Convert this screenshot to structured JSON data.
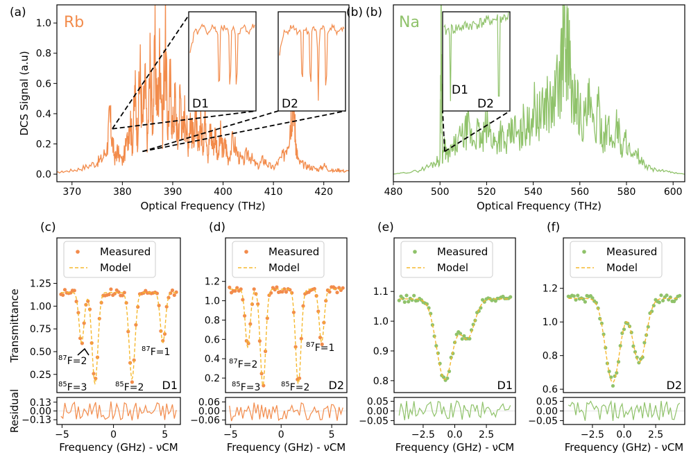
{
  "colors": {
    "rb": "#f28b4b",
    "na": "#8fc26a",
    "model": "#f5b82e",
    "axis": "#000000"
  },
  "chart_data": [
    {
      "id": "a",
      "type": "line",
      "panel_label": "(a)",
      "title": "Rb",
      "xlabel": "Optical Frequency (THz)",
      "ylabel": "DCS Signal (a.u)",
      "xlim": [
        367,
        425
      ],
      "ylim": [
        -0.05,
        1.12
      ],
      "xticks": [
        370,
        380,
        390,
        400,
        410,
        420
      ],
      "yticks": [
        0.0,
        0.2,
        0.4,
        0.6,
        0.8,
        1.0
      ],
      "xtick_labels": [
        "370",
        "380",
        "390",
        "400",
        "410",
        "420"
      ],
      "ytick_labels": [
        "0.0",
        "0.2",
        "0.4",
        "0.6",
        "0.8",
        "1.0"
      ],
      "series": [
        {
          "name": "Rb spectrum",
          "color": "#f28b4b",
          "x": [
            367,
            369,
            371,
            373,
            375,
            376,
            377,
            377.5,
            378,
            378.5,
            379,
            380,
            381,
            381.5,
            382,
            382.5,
            383,
            383.5,
            384,
            384.5,
            385,
            385.5,
            386,
            386.5,
            387,
            387.5,
            388,
            388.5,
            389,
            389.5,
            390,
            390.5,
            391,
            391.5,
            392,
            392.5,
            393,
            393.5,
            394,
            394.5,
            395,
            395.5,
            396,
            396.5,
            397,
            397.5,
            398,
            398.5,
            399,
            399.5,
            400,
            400.5,
            401,
            402,
            403,
            404,
            405,
            406,
            407,
            408,
            409,
            410,
            411,
            412,
            413,
            413.5,
            414,
            414.3,
            414.6,
            415,
            416,
            417,
            418,
            419,
            420,
            421,
            422,
            423,
            424,
            425
          ],
          "y": [
            0.01,
            0.02,
            0.03,
            0.05,
            0.08,
            0.1,
            0.18,
            0.38,
            0.22,
            0.1,
            0.15,
            0.08,
            0.22,
            0.4,
            0.18,
            0.55,
            0.25,
            0.7,
            0.3,
            0.6,
            0.2,
            0.72,
            0.35,
            0.78,
            0.4,
            0.85,
            0.3,
            0.95,
            0.28,
            0.6,
            0.3,
            0.5,
            0.2,
            0.55,
            0.25,
            0.45,
            0.18,
            0.4,
            0.22,
            0.42,
            0.15,
            0.35,
            0.2,
            0.45,
            0.12,
            0.3,
            0.18,
            0.28,
            0.1,
            0.25,
            0.15,
            0.2,
            0.1,
            0.22,
            0.12,
            0.08,
            0.15,
            0.08,
            0.05,
            0.1,
            0.06,
            0.04,
            0.08,
            0.12,
            0.25,
            0.4,
            0.55,
            0.3,
            0.15,
            0.08,
            0.06,
            0.05,
            0.04,
            0.03,
            0.06,
            0.03,
            0.02,
            0.03,
            0.02,
            0.02
          ]
        }
      ],
      "insets": [
        {
          "label": "D1",
          "zoom_x": 378,
          "zoom_y": 0.3,
          "dips": [
            0.45,
            0.62,
            0.72
          ]
        },
        {
          "label": "D2",
          "zoom_x": 384,
          "zoom_y": 0.15,
          "dips": [
            0.35,
            0.48,
            0.6,
            0.72
          ]
        }
      ]
    },
    {
      "id": "b",
      "type": "line",
      "panel_label": "(b)",
      "title": "Na",
      "xlabel": "Optical Frequency (THz)",
      "ylabel": "",
      "xlim": [
        480,
        605
      ],
      "ylim": [
        -0.05,
        1.12
      ],
      "xticks": [
        480,
        500,
        520,
        540,
        560,
        580,
        600
      ],
      "yticks": [],
      "xtick_labels": [
        "480",
        "500",
        "520",
        "540",
        "560",
        "580",
        "600"
      ],
      "ytick_labels": [],
      "series": [
        {
          "name": "Na spectrum",
          "color": "#8fc26a",
          "x": [
            480,
            485,
            490,
            495,
            498,
            500,
            500.5,
            501,
            502,
            503,
            505,
            507,
            510,
            512,
            514,
            516,
            518,
            520,
            522,
            524,
            526,
            528,
            530,
            532,
            534,
            536,
            538,
            540,
            542,
            544,
            546,
            548,
            550,
            552,
            553,
            554,
            555,
            556,
            557,
            558,
            560,
            562,
            564,
            566,
            568,
            570,
            572,
            574,
            576,
            578,
            580,
            582,
            585,
            588,
            592,
            596,
            600,
            605
          ],
          "y": [
            0.0,
            0.01,
            0.02,
            0.05,
            0.08,
            0.1,
            1.1,
            0.12,
            0.18,
            0.12,
            0.15,
            0.2,
            0.25,
            0.3,
            0.22,
            0.28,
            0.2,
            0.32,
            0.25,
            0.2,
            0.28,
            0.18,
            0.25,
            0.3,
            0.22,
            0.35,
            0.3,
            0.45,
            0.38,
            0.4,
            0.5,
            0.42,
            0.55,
            0.7,
            0.85,
            0.78,
            0.9,
            0.6,
            0.45,
            0.55,
            0.4,
            0.35,
            0.45,
            0.28,
            0.4,
            0.25,
            0.3,
            0.2,
            0.35,
            0.15,
            0.25,
            0.1,
            0.12,
            0.05,
            0.03,
            0.02,
            0.01,
            0.0
          ]
        }
      ],
      "insets": [
        {
          "labels": [
            "D1",
            "D2"
          ],
          "zoom_x": 502,
          "zoom_y": 0.15
        }
      ]
    },
    {
      "id": "c",
      "type": "scatter",
      "panel_label": "(c)",
      "detail": "D1",
      "xlabel": "Frequency (GHz) - νCM",
      "ylabel": "Transmittance",
      "residual_label": "Residual",
      "xlim": [
        -5.5,
        6.5
      ],
      "ylim": [
        0.05,
        1.75
      ],
      "res_lim": [
        -0.2,
        0.2
      ],
      "xticks": [
        -5,
        0,
        5
      ],
      "yticks": [
        0.25,
        0.5,
        0.75,
        1.0,
        1.25
      ],
      "res_ticks": [
        -0.13,
        0.0,
        0.13
      ],
      "xtick_labels": [
        "−5",
        "0",
        "5"
      ],
      "ytick_labels": [
        "0.25",
        "0.50",
        "0.75",
        "1.00",
        "1.25"
      ],
      "res_tick_labels": [
        "−0.13",
        "0.00",
        "0.13"
      ],
      "color": "#f28b4b",
      "baseline": 1.15,
      "dips": [
        {
          "center": -3.1,
          "depth": 0.55,
          "width": 0.35
        },
        {
          "center": -1.8,
          "depth": 1.0,
          "width": 0.4
        },
        {
          "center": 1.8,
          "depth": 0.95,
          "width": 0.4
        },
        {
          "center": 4.8,
          "depth": 0.55,
          "width": 0.35
        }
      ],
      "legend": [
        "Measured",
        "Model"
      ],
      "annotations": [
        "87F=2",
        "85F=3",
        "85F=2",
        "87F=1"
      ],
      "corner_label": "D1"
    },
    {
      "id": "d",
      "type": "scatter",
      "panel_label": "(d)",
      "detail": "D2",
      "xlabel": "Frequency (GHz) - νCM",
      "ylabel": "",
      "residual_label": "",
      "xlim": [
        -5.5,
        6.5
      ],
      "ylim": [
        0.05,
        1.65
      ],
      "res_lim": [
        -0.09,
        0.09
      ],
      "xticks": [
        -5,
        0,
        5
      ],
      "yticks": [
        0.2,
        0.4,
        0.6,
        0.8,
        1.0,
        1.2
      ],
      "res_ticks": [
        -0.06,
        0.0,
        0.06
      ],
      "xtick_labels": [
        "−5",
        "0",
        "5"
      ],
      "ytick_labels": [
        "0.2",
        "0.4",
        "0.6",
        "0.8",
        "1.0",
        "1.2"
      ],
      "res_tick_labels": [
        "−0.06",
        "0.00",
        "0.06"
      ],
      "color": "#f28b4b",
      "baseline": 1.12,
      "dips": [
        {
          "center": -3.3,
          "depth": 0.6,
          "width": 0.35
        },
        {
          "center": -1.8,
          "depth": 1.0,
          "width": 0.38
        },
        {
          "center": 1.7,
          "depth": 0.98,
          "width": 0.38
        },
        {
          "center": 4.0,
          "depth": 0.55,
          "width": 0.35
        }
      ],
      "legend": [
        "Measured",
        "Model"
      ],
      "annotations": [
        "87F=2",
        "85F=3",
        "85F=2",
        "87F=1"
      ],
      "corner_label": "D2"
    },
    {
      "id": "e",
      "type": "scatter",
      "panel_label": "(e)",
      "detail": "D1",
      "xlabel": "Frequency (GHz) - νCM",
      "ylabel": "",
      "residual_label": "",
      "xlim": [
        -4.8,
        4.8
      ],
      "ylim": [
        0.76,
        1.28
      ],
      "res_lim": [
        -0.07,
        0.07
      ],
      "xticks": [
        -2.5,
        0.0,
        2.5
      ],
      "yticks": [
        0.8,
        0.9,
        1.0,
        1.1
      ],
      "res_ticks": [
        -0.05,
        0.0,
        0.05
      ],
      "xtick_labels": [
        "−2.5",
        "0.0",
        "2.5"
      ],
      "ytick_labels": [
        "0.8",
        "0.9",
        "1.0",
        "1.1"
      ],
      "res_tick_labels": [
        "−0.05",
        "0.00",
        "0.05"
      ],
      "color": "#8fc26a",
      "baseline": 1.075,
      "dips": [
        {
          "center": -0.8,
          "depth": 0.27,
          "width": 0.9
        },
        {
          "center": 1.0,
          "depth": 0.13,
          "width": 0.8
        }
      ],
      "legend": [
        "Measured",
        "Model"
      ],
      "corner_label": "D1"
    },
    {
      "id": "f",
      "type": "scatter",
      "panel_label": "(f)",
      "detail": "D2",
      "xlabel": "",
      "ylabel": "",
      "residual_label": "",
      "xlim": [
        -4.8,
        4.8
      ],
      "ylim": [
        0.58,
        1.5
      ],
      "res_lim": [
        -0.07,
        0.07
      ],
      "xticks": [
        -2.5,
        0.0,
        2.5
      ],
      "yticks": [
        0.6,
        0.8,
        1.0,
        1.2
      ],
      "res_ticks": [
        -0.05,
        0.0,
        0.05
      ],
      "xtick_labels": [
        "−2.5",
        "0.0",
        "2.5"
      ],
      "ytick_labels": [
        "0.6",
        "0.8",
        "1.0",
        "1.2"
      ],
      "res_tick_labels": [
        "−0.05",
        "0.00",
        "0.05"
      ],
      "color": "#8fc26a",
      "baseline": 1.14,
      "dips": [
        {
          "center": -0.9,
          "depth": 0.5,
          "width": 0.8
        },
        {
          "center": 1.2,
          "depth": 0.38,
          "width": 0.75
        }
      ],
      "legend": [
        "Measured",
        "Model"
      ],
      "corner_label": "D2"
    }
  ]
}
